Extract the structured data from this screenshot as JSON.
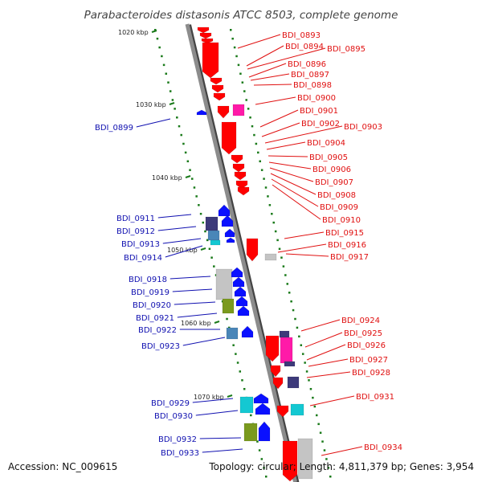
{
  "title": "Parabacteroides distasonis ATCC 8503, complete genome",
  "footer": {
    "accession": "Accession: NC_009615",
    "topology": "Topology: circular; Length: 4,811,379 bp; Genes: 3,954"
  },
  "colors": {
    "right_label": "#e01010",
    "left_label": "#1010b0",
    "backbone": "#8c8c8c",
    "tick": "#1a7a1a",
    "gene_red": "#ff0000",
    "gene_blue": "#0a10ff",
    "gene_magenta": "#ff1aa8",
    "gene_gray": "#c4c4c4",
    "gene_navy": "#3d3a7a",
    "gene_steel": "#4a86b8",
    "gene_cyan": "#14c8d2",
    "gene_olive": "#7a9a1e"
  },
  "kbp_markers": [
    "1020 kbp",
    "1030 kbp",
    "1040 kbp",
    "1050 kbp",
    "1060 kbp",
    "1070 kbp"
  ],
  "right_genes": [
    "BDI_0893",
    "BDI_0894",
    "BDI_0895",
    "BDI_0896",
    "BDI_0897",
    "BDI_0898",
    "BDI_0900",
    "BDI_0901",
    "BDI_0902",
    "BDI_0903",
    "BDI_0904",
    "BDI_0905",
    "BDI_0906",
    "BDI_0907",
    "BDI_0908",
    "BDI_0909",
    "BDI_0910",
    "BDI_0915",
    "BDI_0916",
    "BDI_0917",
    "BDI_0924",
    "BDI_0925",
    "BDI_0926",
    "BDI_0927",
    "BDI_0928",
    "BDI_0931",
    "BDI_0934"
  ],
  "left_genes": [
    "BDI_0899",
    "BDI_0911",
    "BDI_0912",
    "BDI_0913",
    "BDI_0914",
    "BDI_0918",
    "BDI_0919",
    "BDI_0920",
    "BDI_0921",
    "BDI_0922",
    "BDI_0923",
    "BDI_0929",
    "BDI_0930",
    "BDI_0932",
    "BDI_0933"
  ]
}
